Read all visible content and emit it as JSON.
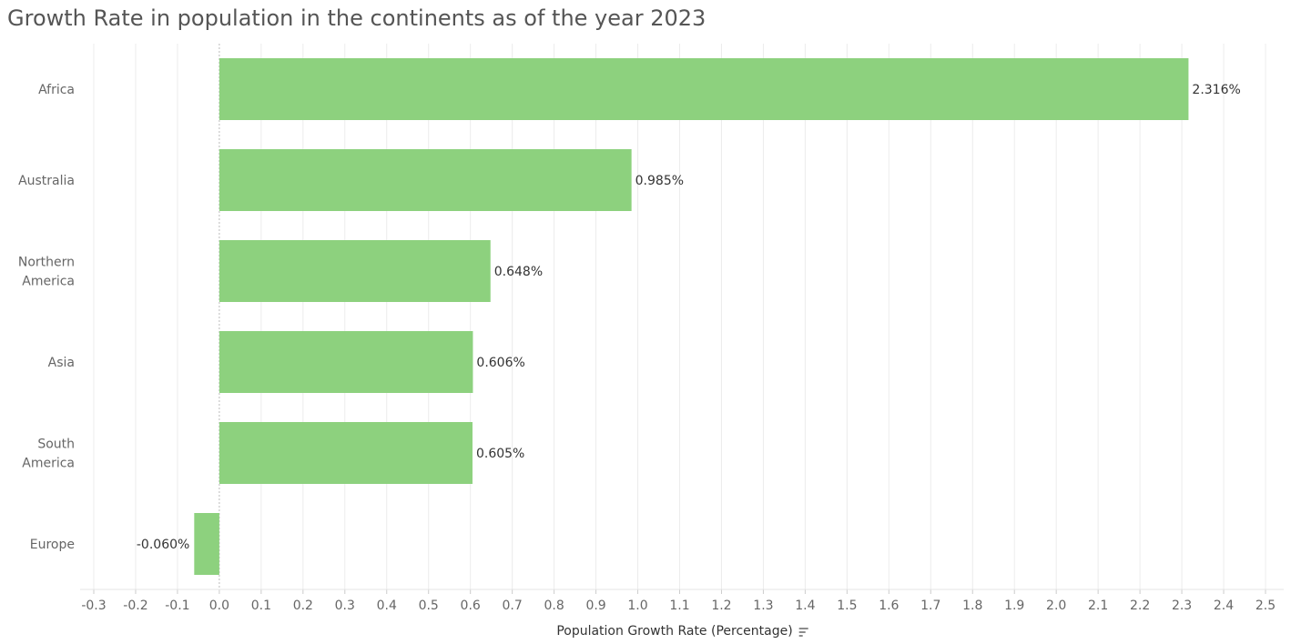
{
  "chart_data": {
    "type": "bar",
    "orientation": "horizontal",
    "title": "Growth Rate in population in the continents as of the year 2023",
    "xlabel": "Population Growth Rate (Percentage)",
    "ylabel": "",
    "categories": [
      [
        "Africa"
      ],
      [
        "Australia"
      ],
      [
        "Northern",
        "America"
      ],
      [
        "Asia"
      ],
      [
        "South",
        "America"
      ],
      [
        "Europe"
      ]
    ],
    "values": [
      2.316,
      0.985,
      0.648,
      0.606,
      0.605,
      -0.06
    ],
    "data_labels": [
      "2.316%",
      "0.985%",
      "0.648%",
      "0.606%",
      "0.605%",
      "-0.060%"
    ],
    "xlim": [
      -0.3,
      2.5
    ],
    "xticks": [
      -0.3,
      -0.2,
      -0.1,
      0.0,
      0.1,
      0.2,
      0.3,
      0.4,
      0.5,
      0.6,
      0.7,
      0.8,
      0.9,
      1.0,
      1.1,
      1.2,
      1.3,
      1.4,
      1.5,
      1.6,
      1.7,
      1.8,
      1.9,
      2.0,
      2.1,
      2.2,
      2.3,
      2.4,
      2.5
    ],
    "xtick_labels": [
      "-0.3",
      "-0.2",
      "-0.1",
      "0.0",
      "0.1",
      "0.2",
      "0.3",
      "0.4",
      "0.5",
      "0.6",
      "0.7",
      "0.8",
      "0.9",
      "1.0",
      "1.1",
      "1.2",
      "1.3",
      "1.4",
      "1.5",
      "1.6",
      "1.7",
      "1.8",
      "1.9",
      "2.0",
      "2.1",
      "2.2",
      "2.3",
      "2.4",
      "2.5"
    ],
    "grid": true,
    "bar_color": "#8dd17e",
    "sort_icon": "sort-descending-icon"
  }
}
